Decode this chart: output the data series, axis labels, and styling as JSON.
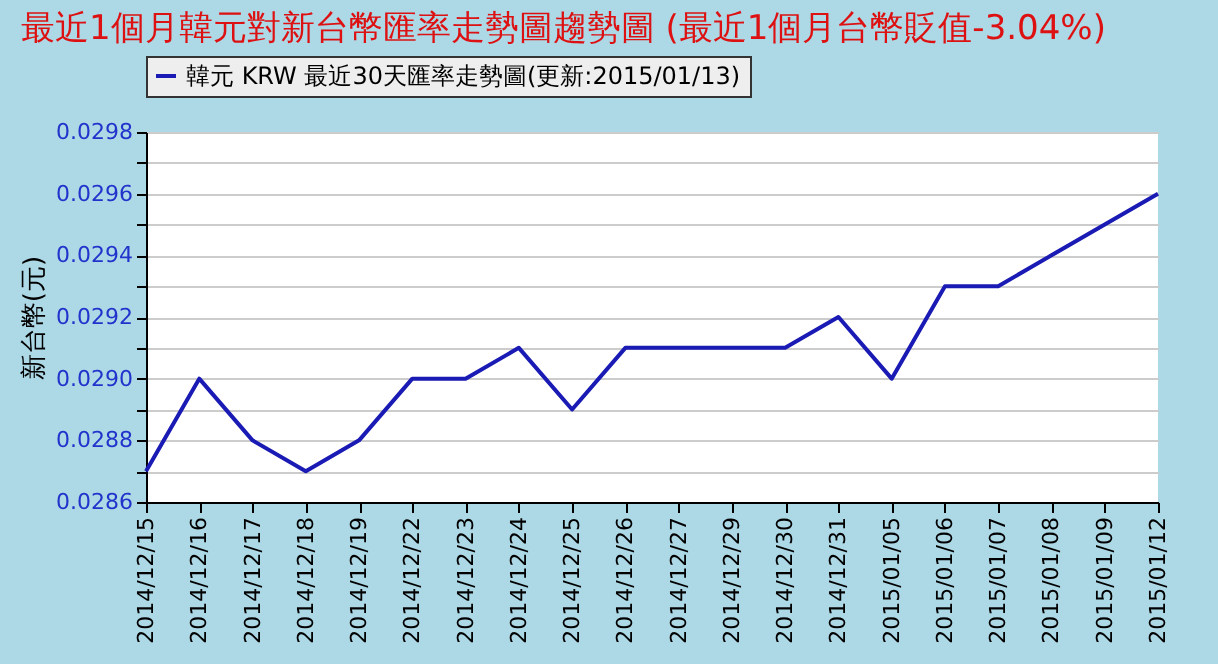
{
  "chart_data": {
    "type": "line",
    "title": "最近1個月韓元對新台幣匯率走勢圖趨勢圖 (最近1個月台幣貶值-3.04%)",
    "ylabel": "新台幣(元)",
    "categories": [
      "2014/12/15",
      "2014/12/16",
      "2014/12/17",
      "2014/12/18",
      "2014/12/19",
      "2014/12/22",
      "2014/12/23",
      "2014/12/24",
      "2014/12/25",
      "2014/12/26",
      "2014/12/27",
      "2014/12/29",
      "2014/12/30",
      "2014/12/31",
      "2015/01/05",
      "2015/01/06",
      "2015/01/07",
      "2015/01/08",
      "2015/01/09",
      "2015/01/12"
    ],
    "series": [
      {
        "name": "韓元 KRW 最近30天匯率走勢圖(更新:2015/01/13)",
        "color": "#1a1ab4",
        "values": [
          0.0287,
          0.029,
          0.0288,
          0.0287,
          0.0288,
          0.029,
          0.029,
          0.0291,
          0.0289,
          0.0291,
          0.0291,
          0.0291,
          0.0291,
          0.0292,
          0.029,
          0.0293,
          0.0293,
          0.0294,
          0.0295,
          0.0296
        ]
      }
    ],
    "ylim": [
      0.0286,
      0.0298
    ],
    "yticks": [
      0.0286,
      {
        "value": 0.0287,
        "label": null
      },
      0.0288,
      {
        "value": 0.0289,
        "label": null
      },
      {
        "value": 0.029,
        "label": "0.0290"
      },
      {
        "value": 0.0291,
        "label": null
      },
      0.0292,
      {
        "value": 0.0293,
        "label": null
      },
      0.0294,
      {
        "value": 0.0295,
        "label": null
      },
      0.0296,
      {
        "value": 0.0297,
        "label": null
      },
      0.0298
    ],
    "grid": "y",
    "legend": "top",
    "marker": "none",
    "line_style": "solid"
  }
}
